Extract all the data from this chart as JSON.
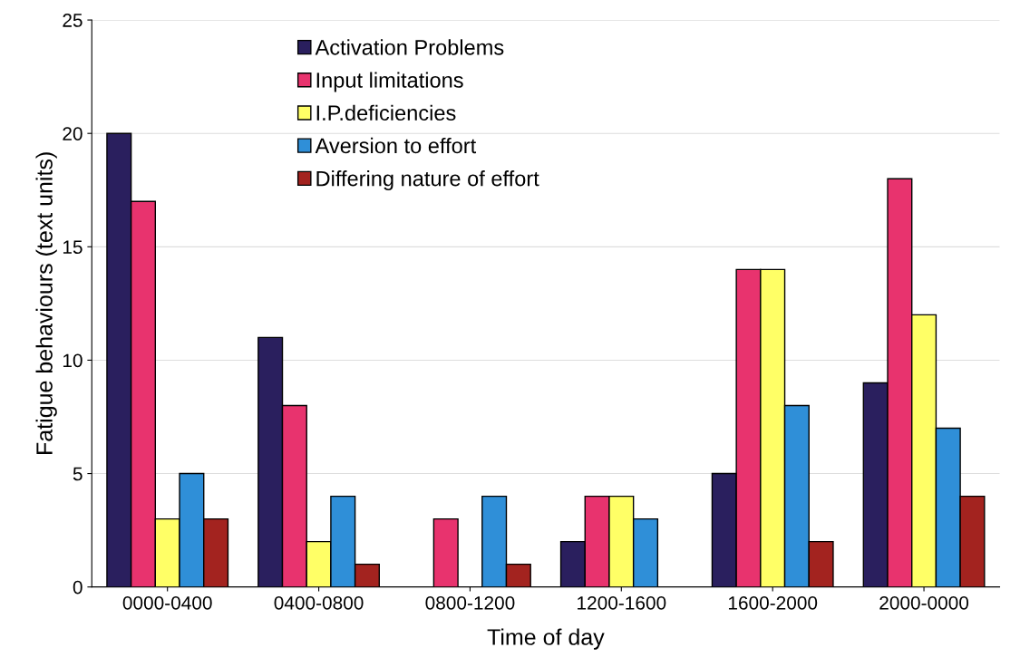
{
  "chart_data": {
    "type": "bar",
    "xlabel": "Time of day",
    "ylabel": "Fatigue behaviours (text units)",
    "categories": [
      "0000-0400",
      "0400-0800",
      "0800-1200",
      "1200-1600",
      "1600-2000",
      "2000-0000"
    ],
    "series": [
      {
        "name": "Activation Problems",
        "color": "#2a1f5e",
        "values": [
          20,
          11,
          0,
          2,
          5,
          9
        ]
      },
      {
        "name": "Input limitations",
        "color": "#e8336e",
        "values": [
          17,
          8,
          3,
          4,
          14,
          18
        ]
      },
      {
        "name": "I.P.deficiencies",
        "color": "#ffff66",
        "values": [
          3,
          2,
          0,
          4,
          14,
          12
        ]
      },
      {
        "name": "Aversion to effort",
        "color": "#2f8fd8",
        "values": [
          5,
          4,
          4,
          3,
          8,
          7
        ]
      },
      {
        "name": "Differing nature of effort",
        "color": "#a3231f",
        "values": [
          3,
          1,
          1,
          0,
          2,
          4
        ]
      }
    ],
    "ylim": [
      0,
      25
    ],
    "yticks": [
      0,
      5,
      10,
      15,
      20,
      25
    ],
    "grid": "y",
    "legend": "top"
  }
}
